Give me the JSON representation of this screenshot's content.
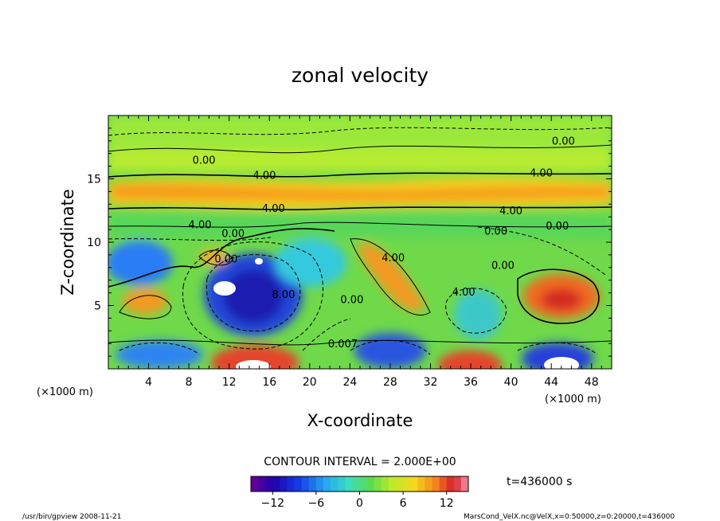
{
  "chart_data": {
    "type": "heatmap",
    "title": "zonal velocity",
    "xlabel": "X-coordinate",
    "ylabel": "Z-coordinate",
    "x_unit_left": "(×1000 m)",
    "x_unit_right": "(×1000 m)",
    "xlim": [
      0,
      50
    ],
    "ylim": [
      0,
      20
    ],
    "x_ticks": [
      4,
      8,
      12,
      16,
      20,
      24,
      28,
      32,
      36,
      40,
      44,
      48
    ],
    "y_ticks": [
      5,
      10,
      15
    ],
    "contour_interval": "CONTOUR INTERVAL = 2.000E+00",
    "time_label": "t=436000 s",
    "colorbar": {
      "min": -15,
      "max": 15,
      "ticks": [
        -12,
        -6,
        0,
        6,
        12
      ]
    },
    "contour_labels": [
      {
        "text": "0.00",
        "x": 9.5,
        "y": 16.2
      },
      {
        "text": "4.00",
        "x": 15.5,
        "y": 15.0
      },
      {
        "text": "0.00",
        "x": 45.2,
        "y": 17.7
      },
      {
        "text": "4.00",
        "x": 43.0,
        "y": 15.2
      },
      {
        "text": "4.00",
        "x": 16.4,
        "y": 12.4
      },
      {
        "text": "4.00",
        "x": 40.0,
        "y": 12.2
      },
      {
        "text": "4.00",
        "x": 9.1,
        "y": 11.1
      },
      {
        "text": "0.00",
        "x": 12.4,
        "y": 10.4
      },
      {
        "text": "0.00",
        "x": 38.5,
        "y": 10.6
      },
      {
        "text": "0.00",
        "x": 44.6,
        "y": 11.0
      },
      {
        "text": "0.00",
        "x": 11.7,
        "y": 8.4
      },
      {
        "text": "4.00",
        "x": 28.3,
        "y": 8.5
      },
      {
        "text": "0.00",
        "x": 39.2,
        "y": 7.9
      },
      {
        "text": "4.00",
        "x": 35.3,
        "y": 5.8
      },
      {
        "text": "8.00",
        "x": 17.4,
        "y": 5.6
      },
      {
        "text": "0.00",
        "x": 24.2,
        "y": 5.2
      },
      {
        "text": "0.007",
        "x": 23.3,
        "y": 1.7
      }
    ]
  },
  "footer": {
    "left": "/usr/bin/gpview   2008-11-21",
    "right": "MarsCond_VelX.nc@VelX,x=0:50000,z=0:20000,t=436000"
  }
}
